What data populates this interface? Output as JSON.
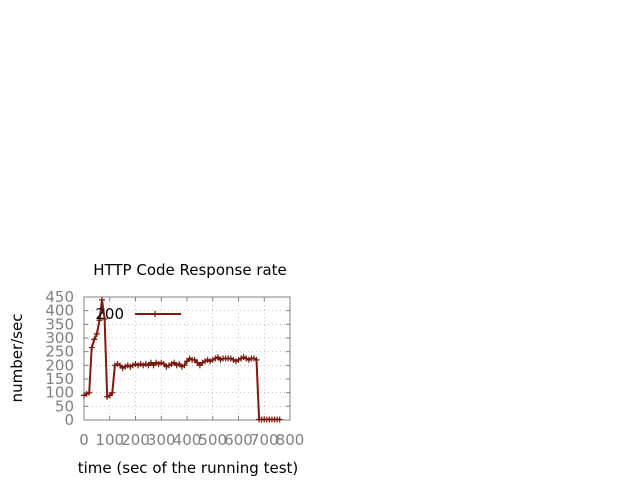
{
  "chart_data": {
    "type": "line",
    "title": "HTTP Code Response rate",
    "xlabel": "time (sec of the running test)",
    "ylabel": "number/sec",
    "xlim": [
      0,
      800
    ],
    "ylim": [
      0,
      450
    ],
    "xticks": [
      "0",
      "100",
      "200",
      "300",
      "400",
      "500",
      "600",
      "700",
      "800"
    ],
    "yticks": [
      "0",
      "50",
      "100",
      "150",
      "200",
      "250",
      "300",
      "350",
      "400",
      "450"
    ],
    "grid": true,
    "legend_position": "top-left",
    "series": [
      {
        "name": "200",
        "color": "#7b1a0e",
        "x": [
          0,
          10,
          20,
          30,
          40,
          50,
          60,
          70,
          80,
          90,
          100,
          110,
          120,
          130,
          140,
          150,
          160,
          170,
          180,
          190,
          200,
          210,
          220,
          230,
          240,
          250,
          260,
          270,
          280,
          290,
          300,
          310,
          320,
          330,
          340,
          350,
          360,
          370,
          380,
          390,
          400,
          410,
          420,
          430,
          440,
          450,
          460,
          470,
          480,
          490,
          500,
          510,
          520,
          530,
          540,
          550,
          560,
          570,
          580,
          590,
          600,
          610,
          620,
          630,
          640,
          650,
          660,
          670,
          680,
          690,
          700,
          710,
          720,
          730,
          740,
          750,
          760
        ],
        "y": [
          90,
          95,
          100,
          265,
          295,
          315,
          365,
          440,
          370,
          85,
          90,
          100,
          200,
          205,
          200,
          190,
          195,
          200,
          195,
          200,
          205,
          200,
          205,
          200,
          205,
          200,
          210,
          200,
          210,
          205,
          210,
          205,
          195,
          200,
          205,
          210,
          200,
          205,
          195,
          200,
          215,
          225,
          220,
          220,
          210,
          200,
          210,
          215,
          220,
          215,
          220,
          225,
          230,
          220,
          225,
          225,
          225,
          225,
          220,
          215,
          220,
          225,
          230,
          225,
          220,
          225,
          225,
          220,
          2,
          2,
          2,
          2,
          2,
          2,
          2,
          2,
          2
        ]
      }
    ]
  }
}
